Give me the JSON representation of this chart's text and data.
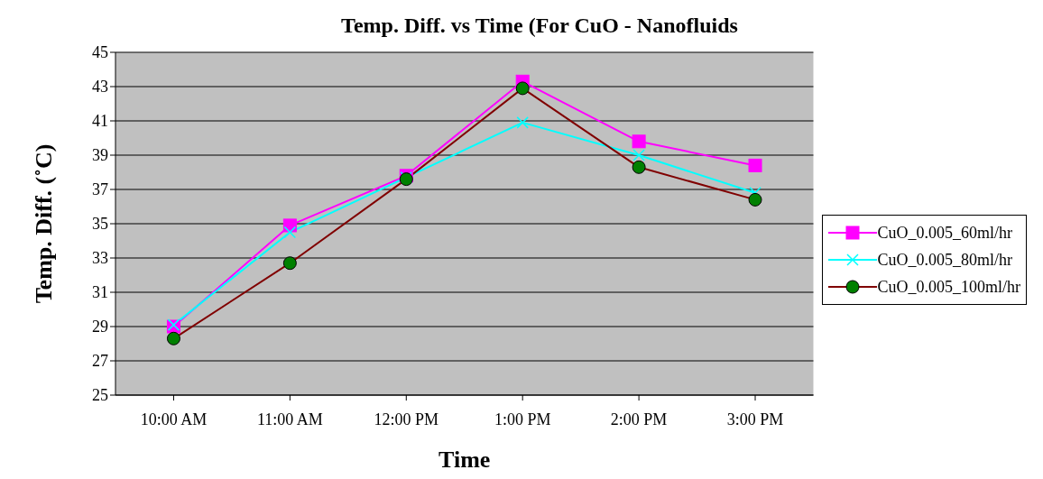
{
  "chart_data": {
    "type": "line",
    "title": "Temp. Diff. vs Time (For CuO - Nanofluids",
    "xlabel": "Time",
    "ylabel": "Temp. Diff. (˚C)",
    "categories": [
      "10:00 AM",
      "11:00 AM",
      "12:00 PM",
      "1:00 PM",
      "2:00 PM",
      "3:00 PM"
    ],
    "series": [
      {
        "name": "CuO_0.005_60ml/hr",
        "color": "#ff00ff",
        "marker": "square",
        "values": [
          29.0,
          34.9,
          37.8,
          43.3,
          39.8,
          38.4
        ]
      },
      {
        "name": "CuO_0.005_80ml/hr",
        "color": "#00ffff",
        "marker": "cross",
        "values": [
          29.1,
          34.5,
          37.7,
          40.9,
          39.0,
          36.8
        ]
      },
      {
        "name": "CuO_0.005_100ml/hr",
        "color": "#800000",
        "marker": "circle",
        "colors": [
          "#008000",
          "#008000",
          "#008000",
          "#008000",
          "#008000",
          "#008000"
        ],
        "values": [
          28.3,
          32.7,
          37.6,
          42.9,
          38.3,
          36.4
        ]
      }
    ],
    "ylim": [
      25,
      45
    ],
    "yticks": [
      25,
      27,
      29,
      31,
      33,
      35,
      37,
      39,
      41,
      43,
      45
    ],
    "grid": "y",
    "legend": "right",
    "line_style": "solid"
  }
}
